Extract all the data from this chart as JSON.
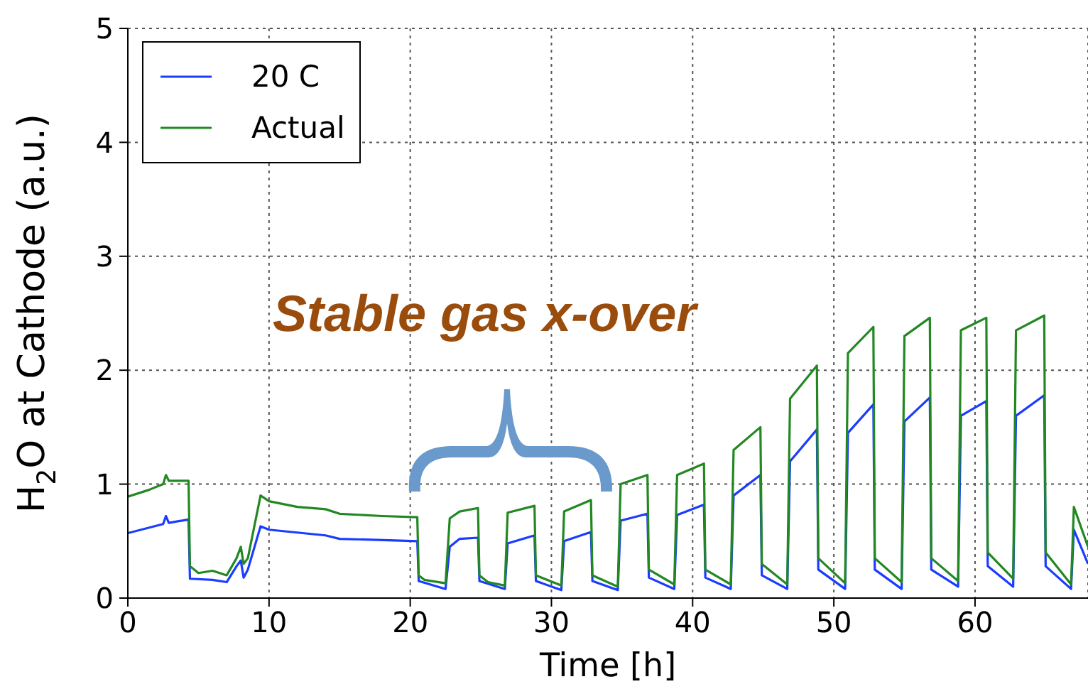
{
  "chart_data": {
    "type": "line",
    "xlabel": "Time [h]",
    "ylabel": "H$_{2}$O at Cathode (a.u.)",
    "xlim": [
      0,
      68
    ],
    "xticks": [
      0,
      10,
      20,
      30,
      40,
      50,
      60
    ],
    "ylim": [
      0,
      5
    ],
    "yticks": [
      0,
      1,
      2,
      3,
      4,
      5
    ],
    "grid": true,
    "legend": "top left",
    "marker": "none",
    "line_style": "solid",
    "annotations": [
      "Stable gas x-over"
    ],
    "series": [
      {
        "name": "20 C",
        "color": "#1a3cff",
        "x": [
          0,
          2.5,
          2.7,
          2.9,
          4.3,
          4.4,
          6,
          7,
          7.7,
          8.0,
          8.2,
          8.5,
          9.4,
          10,
          14,
          15,
          20.5,
          20.6,
          22.5,
          22.8,
          23.5,
          24.8,
          24.9,
          26.7,
          26.9,
          28.8,
          28.9,
          30.7,
          30.9,
          32.8,
          32.9,
          34.7,
          34.9,
          36.8,
          36.9,
          38.7,
          38.9,
          40.8,
          40.9,
          42.7,
          42.9,
          44.8,
          44.9,
          46.7,
          46.9,
          48.8,
          48.9,
          50.8,
          51,
          52.8,
          52.9,
          54.8,
          55,
          56.8,
          56.9,
          58.8,
          59,
          60.8,
          60.9,
          62.7,
          62.9,
          64.9,
          65,
          66.8,
          67,
          68
        ],
        "values": [
          0.57,
          0.65,
          0.72,
          0.66,
          0.69,
          0.17,
          0.16,
          0.14,
          0.28,
          0.33,
          0.18,
          0.25,
          0.63,
          0.6,
          0.55,
          0.52,
          0.5,
          0.15,
          0.08,
          0.45,
          0.52,
          0.53,
          0.15,
          0.08,
          0.48,
          0.55,
          0.15,
          0.07,
          0.5,
          0.58,
          0.15,
          0.07,
          0.68,
          0.74,
          0.18,
          0.08,
          0.73,
          0.82,
          0.18,
          0.08,
          0.9,
          1.08,
          0.2,
          0.08,
          1.2,
          1.48,
          0.25,
          0.08,
          1.45,
          1.7,
          0.25,
          0.08,
          1.55,
          1.76,
          0.25,
          0.1,
          1.6,
          1.73,
          0.28,
          0.1,
          1.6,
          1.78,
          0.28,
          0.08,
          0.6,
          0.3
        ]
      },
      {
        "name": "Actual",
        "color": "#228822",
        "x": [
          0,
          1.5,
          2.5,
          2.7,
          2.9,
          4.3,
          4.4,
          5,
          6,
          7,
          7.7,
          8.0,
          8.2,
          8.5,
          9.4,
          10,
          12,
          14,
          15,
          18,
          20.5,
          20.6,
          21,
          22.5,
          22.8,
          23.5,
          24.8,
          24.9,
          25.5,
          26.7,
          26.9,
          28.8,
          28.9,
          30.7,
          30.9,
          32.8,
          32.9,
          34.7,
          34.9,
          36.8,
          36.9,
          38.7,
          38.9,
          40.8,
          40.9,
          42.7,
          42.9,
          44.8,
          44.9,
          46.7,
          46.9,
          48.8,
          48.9,
          50.8,
          51,
          52.8,
          52.9,
          54.8,
          55,
          56.8,
          56.9,
          58.8,
          59,
          60.8,
          60.9,
          62.7,
          62.9,
          64.9,
          65,
          66.8,
          67,
          68
        ],
        "values": [
          0.89,
          0.95,
          1.0,
          1.08,
          1.03,
          1.03,
          0.28,
          0.22,
          0.24,
          0.2,
          0.35,
          0.45,
          0.3,
          0.35,
          0.9,
          0.85,
          0.8,
          0.78,
          0.74,
          0.72,
          0.71,
          0.2,
          0.16,
          0.13,
          0.7,
          0.76,
          0.79,
          0.2,
          0.14,
          0.11,
          0.75,
          0.81,
          0.2,
          0.11,
          0.76,
          0.86,
          0.2,
          0.1,
          1.0,
          1.08,
          0.25,
          0.12,
          1.08,
          1.18,
          0.25,
          0.12,
          1.3,
          1.5,
          0.3,
          0.12,
          1.75,
          2.04,
          0.35,
          0.13,
          2.15,
          2.38,
          0.35,
          0.14,
          2.3,
          2.46,
          0.35,
          0.15,
          2.35,
          2.46,
          0.4,
          0.17,
          2.35,
          2.48,
          0.4,
          0.12,
          0.8,
          0.45
        ]
      }
    ]
  }
}
